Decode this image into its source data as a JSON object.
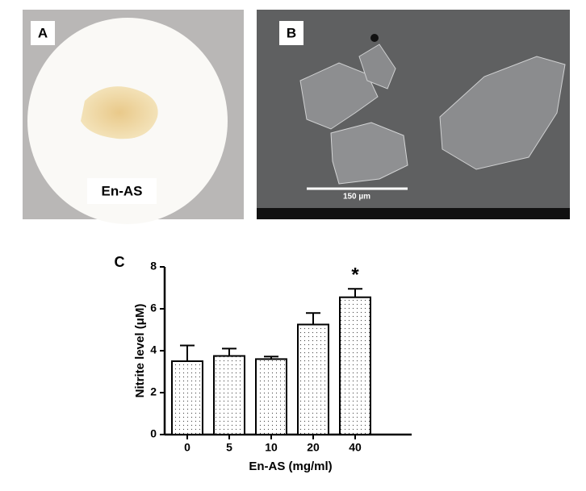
{
  "panels": {
    "a": {
      "label": "A",
      "caption": "En-AS"
    },
    "b": {
      "label": "B",
      "scale_bar": "150 µm"
    }
  },
  "chart_data": {
    "type": "bar",
    "panel_label": "C",
    "y_label": "Nitrite  level (μM)",
    "x_label": "En-AS   (mg/ml)",
    "categories": [
      "0",
      "5",
      "10",
      "20",
      "40"
    ],
    "values": [
      3.5,
      3.75,
      3.6,
      5.25,
      6.55
    ],
    "errors": [
      0.75,
      0.35,
      0.12,
      0.55,
      0.4
    ],
    "significance": [
      null,
      null,
      null,
      null,
      "*"
    ],
    "ylim": [
      0,
      8
    ],
    "yticks": [
      0,
      2,
      4,
      6,
      8
    ],
    "color": "#ffffff"
  }
}
